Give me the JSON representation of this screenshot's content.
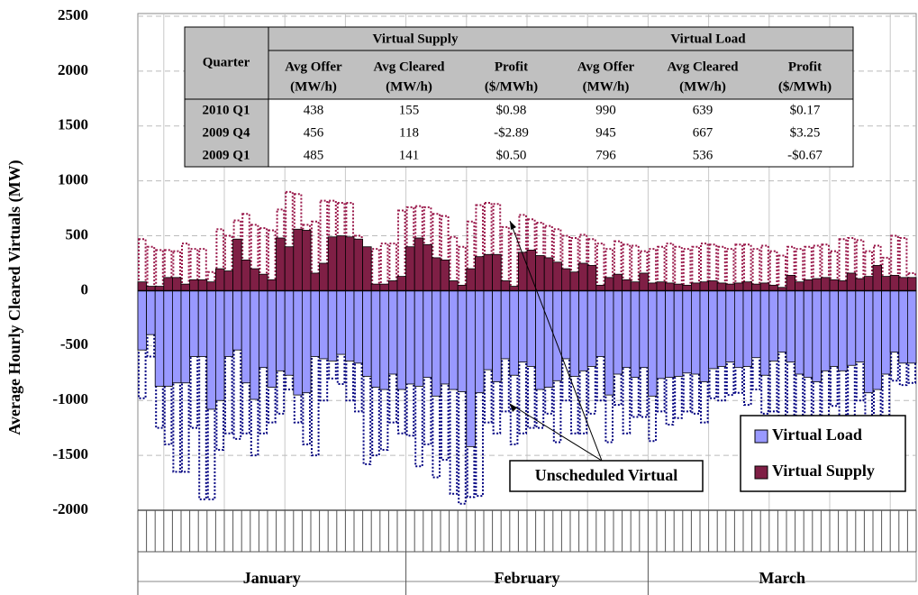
{
  "chart_data": {
    "type": "bar",
    "y_label": "Average Hourly Cleared Virtuals (MW)",
    "ylim": [
      -2000,
      2500
    ],
    "yticks": [
      2500,
      2000,
      1500,
      1000,
      500,
      0,
      -500,
      -1000,
      -1500,
      -2000
    ],
    "grid": true,
    "legend": "lower right",
    "annotation": "Unscheduled Virtual",
    "months": [
      "January",
      "February",
      "March"
    ],
    "series": [
      {
        "name": "Virtual Load",
        "color": "#9999ff",
        "dotted_color": "#000080",
        "values": [
          [
            -540,
            -400,
            -870,
            -870,
            -840,
            -840,
            -600,
            -600,
            -1080,
            -1000,
            -600,
            -540,
            -840,
            -990,
            -700,
            -880,
            -730,
            -770,
            -950,
            -930,
            -600,
            -620,
            -640,
            -580,
            -640,
            -660,
            -780,
            -880,
            -900,
            -760,
            -900
          ],
          [
            -850,
            -870,
            -790,
            -960,
            -850,
            -900,
            -920,
            -1420,
            -930,
            -720,
            -830,
            -620,
            -770,
            -650,
            -690,
            -900,
            -880,
            -820,
            -620,
            -780,
            -730,
            -690,
            -600,
            -950,
            -760,
            -700,
            -790,
            -700
          ],
          [
            -960,
            -800,
            -790,
            -780,
            -750,
            -760,
            -830,
            -710,
            -690,
            -650,
            -700,
            -690,
            -610,
            -770,
            -640,
            -560,
            -650,
            -760,
            -790,
            -830,
            -730,
            -690,
            -730,
            -680,
            -650,
            -930,
            -900,
            -760,
            -560,
            -660,
            -660
          ]
        ],
        "unscheduled": [
          [
            -980,
            -600,
            -1250,
            -1400,
            -1650,
            -1650,
            -1250,
            -1900,
            -1900,
            -1450,
            -1300,
            -1350,
            -1300,
            -1500,
            -1300,
            -1200,
            -1120,
            -900,
            -1200,
            -1400,
            -1500,
            -1000,
            -800,
            -850,
            -1000,
            -1100,
            -1580,
            -1500,
            -1450,
            -1200,
            -1300
          ],
          [
            -1320,
            -1600,
            -1400,
            -1700,
            -1540,
            -1850,
            -1940,
            -1880,
            -1870,
            -1200,
            -1300,
            -1100,
            -1400,
            -1300,
            -1250,
            -1250,
            -1120,
            -1380,
            -1000,
            -1300,
            -1300,
            -1120,
            -1000,
            -1380,
            -1040,
            -1300,
            -1150,
            -1150
          ],
          [
            -1370,
            -1100,
            -1220,
            -1160,
            -1100,
            -1120,
            -1200,
            -980,
            -1000,
            -950,
            -930,
            -1040,
            -900,
            -1120,
            -1100,
            -1250,
            -1300,
            -1150,
            -1300,
            -1300,
            -1150,
            -1050,
            -1260,
            -1160,
            -1000,
            -1190,
            -1500,
            -1250,
            -820,
            -860,
            -840
          ]
        ]
      },
      {
        "name": "Virtual Supply",
        "color": "#7f1f45",
        "dotted_color": "#99184a",
        "values": [
          [
            80,
            40,
            40,
            120,
            120,
            60,
            100,
            100,
            80,
            200,
            180,
            470,
            280,
            200,
            150,
            100,
            480,
            400,
            560,
            550,
            160,
            250,
            490,
            500,
            490,
            470,
            400,
            60,
            60,
            90,
            130
          ],
          [
            400,
            480,
            420,
            300,
            280,
            90,
            50,
            200,
            310,
            330,
            330,
            90,
            40,
            350,
            370,
            320,
            300,
            260,
            200,
            170,
            250,
            230,
            50,
            120,
            150,
            100,
            80,
            160
          ],
          [
            70,
            80,
            70,
            60,
            50,
            70,
            80,
            90,
            70,
            60,
            70,
            80,
            60,
            70,
            50,
            30,
            140,
            80,
            100,
            110,
            120,
            100,
            90,
            160,
            110,
            130,
            230,
            130,
            140,
            120,
            120
          ]
        ],
        "unscheduled": [
          [
            470,
            400,
            370,
            370,
            360,
            430,
            380,
            380,
            170,
            560,
            500,
            640,
            700,
            600,
            570,
            550,
            740,
            900,
            880,
            600,
            630,
            820,
            820,
            800,
            800,
            500,
            380,
            380,
            430,
            430,
            730
          ],
          [
            760,
            770,
            760,
            700,
            680,
            490,
            400,
            630,
            780,
            800,
            790,
            580,
            520,
            690,
            650,
            620,
            590,
            560,
            500,
            480,
            510,
            470,
            430,
            380,
            450,
            420,
            410,
            360
          ],
          [
            380,
            400,
            430,
            400,
            380,
            400,
            430,
            420,
            400,
            380,
            420,
            420,
            380,
            410,
            360,
            320,
            400,
            380,
            400,
            410,
            420,
            360,
            470,
            480,
            460,
            360,
            410,
            300,
            500,
            480,
            160
          ]
        ]
      }
    ]
  },
  "table": {
    "quarter_header": "Quarter",
    "groups": [
      "Virtual Supply",
      "Virtual Load"
    ],
    "columns": [
      [
        "Avg Offer",
        "(MW/h)"
      ],
      [
        "Avg Cleared",
        "(MW/h)"
      ],
      [
        "Profit",
        "($/MWh)"
      ],
      [
        "Avg Offer",
        "(MW/h)"
      ],
      [
        "Avg Cleared",
        "(MW/h)"
      ],
      [
        "Profit",
        "($/MWh)"
      ]
    ],
    "rows": [
      [
        "2010 Q1",
        "438",
        "155",
        "$0.98",
        "990",
        "639",
        "$0.17"
      ],
      [
        "2009 Q4",
        "456",
        "118",
        "-$2.89",
        "945",
        "667",
        "$3.25"
      ],
      [
        "2009 Q1",
        "485",
        "141",
        "$0.50",
        "796",
        "536",
        "-$0.67"
      ]
    ]
  }
}
